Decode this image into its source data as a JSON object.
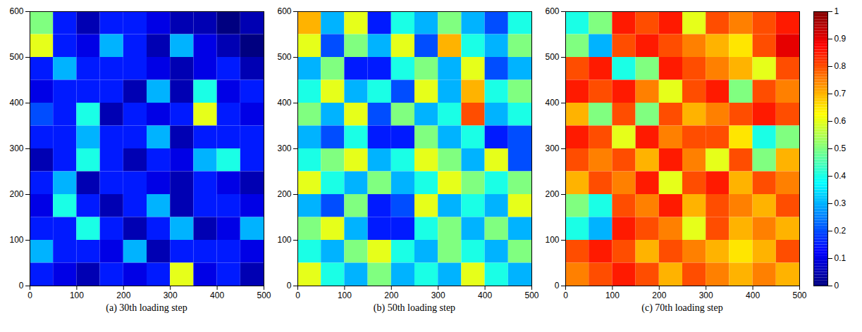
{
  "chart_data": [
    {
      "type": "heatmap",
      "caption": "(a) 30th loading step",
      "xlim": [
        0,
        500
      ],
      "ylim": [
        0,
        600
      ],
      "xticks": [
        0,
        100,
        200,
        300,
        400,
        500
      ],
      "yticks": [
        0,
        100,
        200,
        300,
        400,
        500,
        600
      ],
      "cells": [
        [
          0.5,
          0.15,
          0.05,
          0.15,
          0.15,
          0.1,
          0.05,
          0.05,
          0.0,
          0.05
        ],
        [
          0.6,
          0.15,
          0.1,
          0.3,
          0.15,
          0.05,
          0.3,
          0.1,
          0.05,
          0.0
        ],
        [
          0.15,
          0.3,
          0.15,
          0.15,
          0.15,
          0.1,
          0.05,
          0.1,
          0.15,
          0.05
        ],
        [
          0.1,
          0.15,
          0.15,
          0.15,
          0.05,
          0.3,
          0.05,
          0.4,
          0.1,
          0.15
        ],
        [
          0.2,
          0.15,
          0.4,
          0.05,
          0.15,
          0.1,
          0.15,
          0.6,
          0.15,
          0.1
        ],
        [
          0.15,
          0.15,
          0.3,
          0.15,
          0.15,
          0.3,
          0.05,
          0.15,
          0.15,
          0.15
        ],
        [
          0.05,
          0.15,
          0.4,
          0.15,
          0.05,
          0.15,
          0.1,
          0.3,
          0.4,
          0.15
        ],
        [
          0.15,
          0.3,
          0.05,
          0.15,
          0.15,
          0.1,
          0.05,
          0.15,
          0.1,
          0.05
        ],
        [
          0.1,
          0.4,
          0.15,
          0.05,
          0.15,
          0.3,
          0.05,
          0.15,
          0.15,
          0.1
        ],
        [
          0.15,
          0.15,
          0.4,
          0.15,
          0.05,
          0.15,
          0.3,
          0.05,
          0.1,
          0.3
        ],
        [
          0.3,
          0.15,
          0.15,
          0.1,
          0.3,
          0.05,
          0.15,
          0.15,
          0.15,
          0.1
        ],
        [
          0.15,
          0.1,
          0.05,
          0.15,
          0.1,
          0.15,
          0.6,
          0.1,
          0.15,
          0.05
        ]
      ]
    },
    {
      "type": "heatmap",
      "caption": "(b) 50th loading step",
      "xlim": [
        0,
        500
      ],
      "ylim": [
        0,
        600
      ],
      "xticks": [
        0,
        100,
        200,
        300,
        400,
        500
      ],
      "yticks": [
        0,
        100,
        200,
        300,
        400,
        500,
        600
      ],
      "cells": [
        [
          0.7,
          0.3,
          0.6,
          0.15,
          0.4,
          0.3,
          0.5,
          0.3,
          0.2,
          0.4
        ],
        [
          0.6,
          0.2,
          0.5,
          0.3,
          0.6,
          0.2,
          0.7,
          0.4,
          0.3,
          0.5
        ],
        [
          0.3,
          0.5,
          0.15,
          0.15,
          0.4,
          0.5,
          0.3,
          0.6,
          0.2,
          0.3
        ],
        [
          0.4,
          0.6,
          0.3,
          0.4,
          0.2,
          0.6,
          0.3,
          0.7,
          0.4,
          0.5
        ],
        [
          0.5,
          0.3,
          0.6,
          0.2,
          0.5,
          0.3,
          0.4,
          0.8,
          0.3,
          0.4
        ],
        [
          0.3,
          0.2,
          0.4,
          0.15,
          0.15,
          0.5,
          0.3,
          0.4,
          0.15,
          0.2
        ],
        [
          0.4,
          0.5,
          0.6,
          0.3,
          0.4,
          0.6,
          0.5,
          0.3,
          0.6,
          0.2
        ],
        [
          0.6,
          0.4,
          0.3,
          0.5,
          0.3,
          0.4,
          0.6,
          0.5,
          0.4,
          0.5
        ],
        [
          0.3,
          0.2,
          0.5,
          0.15,
          0.2,
          0.6,
          0.3,
          0.4,
          0.3,
          0.6
        ],
        [
          0.5,
          0.6,
          0.3,
          0.15,
          0.15,
          0.4,
          0.5,
          0.3,
          0.5,
          0.3
        ],
        [
          0.4,
          0.3,
          0.5,
          0.6,
          0.4,
          0.3,
          0.5,
          0.4,
          0.3,
          0.5
        ],
        [
          0.6,
          0.4,
          0.3,
          0.5,
          0.3,
          0.4,
          0.3,
          0.6,
          0.4,
          0.3
        ]
      ]
    },
    {
      "type": "heatmap",
      "caption": "(c) 70th loading step",
      "xlim": [
        0,
        500
      ],
      "ylim": [
        0,
        600
      ],
      "xticks": [
        0,
        100,
        200,
        300,
        400,
        500
      ],
      "yticks": [
        0,
        100,
        200,
        300,
        400,
        500,
        600
      ],
      "cells": [
        [
          0.4,
          0.5,
          0.85,
          0.8,
          0.85,
          0.6,
          0.8,
          0.75,
          0.8,
          0.85
        ],
        [
          0.5,
          0.3,
          0.8,
          0.85,
          0.8,
          0.75,
          0.7,
          0.65,
          0.8,
          0.9
        ],
        [
          0.8,
          0.85,
          0.4,
          0.5,
          0.85,
          0.8,
          0.75,
          0.7,
          0.6,
          0.8
        ],
        [
          0.85,
          0.8,
          0.85,
          0.75,
          0.6,
          0.8,
          0.85,
          0.5,
          0.8,
          0.75
        ],
        [
          0.7,
          0.5,
          0.8,
          0.5,
          0.8,
          0.7,
          0.75,
          0.8,
          0.85,
          0.8
        ],
        [
          0.85,
          0.8,
          0.6,
          0.85,
          0.75,
          0.8,
          0.8,
          0.65,
          0.4,
          0.5
        ],
        [
          0.8,
          0.75,
          0.8,
          0.7,
          0.85,
          0.75,
          0.6,
          0.8,
          0.5,
          0.7
        ],
        [
          0.7,
          0.8,
          0.75,
          0.85,
          0.6,
          0.8,
          0.85,
          0.7,
          0.8,
          0.75
        ],
        [
          0.5,
          0.4,
          0.8,
          0.75,
          0.85,
          0.7,
          0.8,
          0.75,
          0.7,
          0.8
        ],
        [
          0.4,
          0.3,
          0.85,
          0.8,
          0.75,
          0.6,
          0.8,
          0.7,
          0.75,
          0.7
        ],
        [
          0.8,
          0.85,
          0.8,
          0.7,
          0.8,
          0.75,
          0.7,
          0.65,
          0.7,
          0.8
        ],
        [
          0.75,
          0.8,
          0.85,
          0.8,
          0.7,
          0.8,
          0.75,
          0.7,
          0.75,
          0.7
        ]
      ]
    }
  ],
  "colorbar": {
    "range": [
      0,
      1
    ],
    "ticks": [
      0,
      0.1,
      0.2,
      0.3,
      0.4,
      0.5,
      0.6,
      0.7,
      0.8,
      0.9,
      1
    ]
  }
}
